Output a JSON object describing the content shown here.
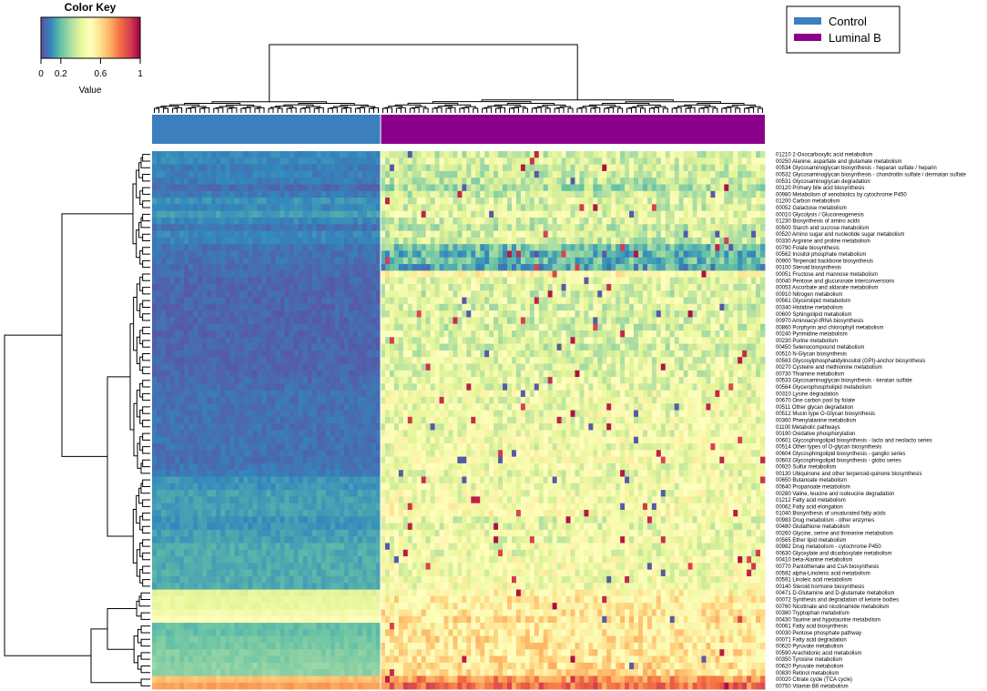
{
  "chart_data": {
    "type": "heatmap",
    "color_key": {
      "title": "Color Key",
      "label": "Value",
      "ticks": [
        "0",
        "0.2",
        "0.6",
        "1"
      ],
      "tick_values": [
        0,
        0.2,
        0.6,
        1
      ],
      "range": [
        0,
        1
      ],
      "colors": [
        "#5e4fa2",
        "#3288bd",
        "#66c2a5",
        "#abdda4",
        "#e6f598",
        "#ffffbf",
        "#fee08b",
        "#fdae61",
        "#f46d43",
        "#d53e4f",
        "#9e0142"
      ]
    },
    "legend": {
      "placement": "top-right",
      "entries": [
        {
          "label": "Control",
          "color": "#3b7fbf"
        },
        {
          "label": "Luminal B",
          "color": "#8b008b"
        }
      ]
    },
    "column_groups": [
      {
        "name": "Control",
        "color": "#3b7fbf",
        "columns": 50
      },
      {
        "name": "Luminal B",
        "color": "#8b008b",
        "columns": 85
      }
    ],
    "rows": [
      {
        "label": "01210 2-Oxocarboxylic acid metabolism",
        "control": 0.1,
        "luminal": 0.38
      },
      {
        "label": "00250 Alanine, aspartate and glutamate metabolism",
        "control": 0.1,
        "luminal": 0.4
      },
      {
        "label": "00534 Glycosaminoglycan biosynthesis - heparan sulfate / heparin",
        "control": 0.08,
        "luminal": 0.36
      },
      {
        "label": "00532 Glycosaminoglycan biosynthesis - chondroitin sulfate / dermatan sulfate",
        "control": 0.09,
        "luminal": 0.37
      },
      {
        "label": "00531 Glycosaminoglycan degradation",
        "control": 0.08,
        "luminal": 0.35
      },
      {
        "label": "00120 Primary bile acid biosynthesis",
        "control": 0.05,
        "luminal": 0.3
      },
      {
        "label": "00980 Metabolism of xenobiotics by cytochrome P450",
        "control": 0.08,
        "luminal": 0.36
      },
      {
        "label": "01200 Carbon metabolism",
        "control": 0.12,
        "luminal": 0.4
      },
      {
        "label": "00052 Galactose metabolism",
        "control": 0.1,
        "luminal": 0.38
      },
      {
        "label": "00010 Glycolysis / Gluconeogenesis",
        "control": 0.14,
        "luminal": 0.42
      },
      {
        "label": "01230 Biosynthesis of amino acids",
        "control": 0.1,
        "luminal": 0.38
      },
      {
        "label": "00500 Starch and sucrose metabolism",
        "control": 0.06,
        "luminal": 0.34
      },
      {
        "label": "00520 Amino sugar and nucleotide sugar metabolism",
        "control": 0.1,
        "luminal": 0.38
      },
      {
        "label": "00330 Arginine and proline metabolism",
        "control": 0.09,
        "luminal": 0.36
      },
      {
        "label": "00790 Folate biosynthesis",
        "control": 0.06,
        "luminal": 0.22
      },
      {
        "label": "00562 Inositol phosphate metabolism",
        "control": 0.06,
        "luminal": 0.18
      },
      {
        "label": "00900 Terpenoid backbone biosynthesis",
        "control": 0.06,
        "luminal": 0.2
      },
      {
        "label": "00100 Steroid biosynthesis",
        "control": 0.05,
        "luminal": 0.16
      },
      {
        "label": "00051 Fructose and mannose metabolism",
        "control": 0.05,
        "luminal": 0.5
      },
      {
        "label": "00040 Pentose and glucuronate interconversions",
        "control": 0.04,
        "luminal": 0.42
      },
      {
        "label": "00053 Ascorbate and aldarate metabolism",
        "control": 0.04,
        "luminal": 0.4
      },
      {
        "label": "00910 Nitrogen metabolism",
        "control": 0.04,
        "luminal": 0.38
      },
      {
        "label": "00561 Glycerolipid metabolism",
        "control": 0.04,
        "luminal": 0.4
      },
      {
        "label": "00340 Histidine metabolism",
        "control": 0.04,
        "luminal": 0.38
      },
      {
        "label": "00600 Sphingolipid metabolism",
        "control": 0.04,
        "luminal": 0.4
      },
      {
        "label": "00970 Aminoacyl-tRNA biosynthesis",
        "control": 0.04,
        "luminal": 0.38
      },
      {
        "label": "00860 Porphyrin and chlorophyll metabolism",
        "control": 0.04,
        "luminal": 0.38
      },
      {
        "label": "00240 Pyrimidine metabolism",
        "control": 0.04,
        "luminal": 0.4
      },
      {
        "label": "00230 Purine metabolism",
        "control": 0.04,
        "luminal": 0.4
      },
      {
        "label": "00450 Selenocompound metabolism",
        "control": 0.04,
        "luminal": 0.38
      },
      {
        "label": "00510 N-Glycan biosynthesis",
        "control": 0.04,
        "luminal": 0.4
      },
      {
        "label": "00563 Glycosylphosphatidylinositol (GPI)-anchor biosynthesis",
        "control": 0.04,
        "luminal": 0.4
      },
      {
        "label": "00270 Cysteine and methionine metabolism",
        "control": 0.04,
        "luminal": 0.4
      },
      {
        "label": "00730 Thiamine metabolism",
        "control": 0.04,
        "luminal": 0.4
      },
      {
        "label": "00533 Glycosaminoglycan biosynthesis - keratan sulfate",
        "control": 0.05,
        "luminal": 0.42
      },
      {
        "label": "00564 Glycerophospholipid metabolism",
        "control": 0.05,
        "luminal": 0.42
      },
      {
        "label": "00310 Lysine degradation",
        "control": 0.06,
        "luminal": 0.44
      },
      {
        "label": "00670 One carbon pool by folate",
        "control": 0.06,
        "luminal": 0.44
      },
      {
        "label": "00511 Other glycan degradation",
        "control": 0.06,
        "luminal": 0.44
      },
      {
        "label": "00512 Mucin type O-Glycan biosynthesis",
        "control": 0.06,
        "luminal": 0.44
      },
      {
        "label": "00360 Phenylalanine metabolism",
        "control": 0.06,
        "luminal": 0.44
      },
      {
        "label": "01100 Metabolic pathways",
        "control": 0.06,
        "luminal": 0.44
      },
      {
        "label": "00190 Oxidative phosphorylation",
        "control": 0.06,
        "luminal": 0.44
      },
      {
        "label": "00601 Glycosphingolipid biosynthesis - lacto and neolacto series",
        "control": 0.06,
        "luminal": 0.46
      },
      {
        "label": "00514 Other types of O-glycan biosynthesis",
        "control": 0.06,
        "luminal": 0.44
      },
      {
        "label": "00604 Glycosphingolipid biosynthesis - ganglio series",
        "control": 0.06,
        "luminal": 0.46
      },
      {
        "label": "00603 Glycosphingolipid biosynthesis - globo series",
        "control": 0.06,
        "luminal": 0.46
      },
      {
        "label": "00920 Sulfur metabolism",
        "control": 0.07,
        "luminal": 0.44
      },
      {
        "label": "00130 Ubiquinone and other terpenoid-quinone biosynthesis",
        "control": 0.08,
        "luminal": 0.44
      },
      {
        "label": "00650 Butanoate metabolism",
        "control": 0.12,
        "luminal": 0.44
      },
      {
        "label": "00640 Propanoate metabolism",
        "control": 0.12,
        "luminal": 0.44
      },
      {
        "label": "00280 Valine, leucine and isoleucine degradation",
        "control": 0.14,
        "luminal": 0.46
      },
      {
        "label": "01212 Fatty acid metabolism",
        "control": 0.14,
        "luminal": 0.46
      },
      {
        "label": "00062 Fatty acid elongation",
        "control": 0.14,
        "luminal": 0.48
      },
      {
        "label": "01040 Biosynthesis of unsaturated fatty acids",
        "control": 0.14,
        "luminal": 0.48
      },
      {
        "label": "00983 Drug metabolism - other enzymes",
        "control": 0.12,
        "luminal": 0.42
      },
      {
        "label": "00480 Glutathione metabolism",
        "control": 0.12,
        "luminal": 0.42
      },
      {
        "label": "00260 Glycine, serine and threonine metabolism",
        "control": 0.14,
        "luminal": 0.44
      },
      {
        "label": "00565 Ether lipid metabolism",
        "control": 0.14,
        "luminal": 0.44
      },
      {
        "label": "00982 Drug metabolism - cytochrome P450",
        "control": 0.16,
        "luminal": 0.44
      },
      {
        "label": "00630 Glyoxylate and dicarboxylate metabolism",
        "control": 0.16,
        "luminal": 0.44
      },
      {
        "label": "00410 beta-Alanine metabolism",
        "control": 0.16,
        "luminal": 0.46
      },
      {
        "label": "00770 Pantothenate and CoA biosynthesis",
        "control": 0.16,
        "luminal": 0.46
      },
      {
        "label": "00592 alpha-Linolenic acid metabolism",
        "control": 0.16,
        "luminal": 0.46
      },
      {
        "label": "00591 Linoleic acid metabolism",
        "control": 0.16,
        "luminal": 0.46
      },
      {
        "label": "00140 Steroid hormone biosynthesis",
        "control": 0.16,
        "luminal": 0.46
      },
      {
        "label": "00471 D-Glutamine and D-glutamate metabolism",
        "control": 0.4,
        "luminal": 0.52
      },
      {
        "label": "00072 Synthesis and degradation of ketone bodies",
        "control": 0.42,
        "luminal": 0.55
      },
      {
        "label": "00760 Nicotinate and nicotinamide metabolism",
        "control": 0.42,
        "luminal": 0.55
      },
      {
        "label": "00380 Tryptophan metabolism",
        "control": 0.45,
        "luminal": 0.56
      },
      {
        "label": "00430 Taurine and hypotaurine metabolism",
        "control": 0.48,
        "luminal": 0.58
      },
      {
        "label": "00061 Fatty acid biosynthesis",
        "control": 0.2,
        "luminal": 0.55
      },
      {
        "label": "00030 Pentose phosphate pathway",
        "control": 0.2,
        "luminal": 0.56
      },
      {
        "label": "00071 Fatty acid degradation",
        "control": 0.22,
        "luminal": 0.58
      },
      {
        "label": "00620 Pyruvate metabolism",
        "control": 0.22,
        "luminal": 0.58
      },
      {
        "label": "00590 Arachidonic acid metabolism",
        "control": 0.24,
        "luminal": 0.58
      },
      {
        "label": "00350 Tyrosine metabolism",
        "control": 0.24,
        "luminal": 0.58
      },
      {
        "label": "00620 Pyruvate metabolism",
        "control": 0.26,
        "luminal": 0.6
      },
      {
        "label": "00830 Retinol metabolism",
        "control": 0.26,
        "luminal": 0.6
      },
      {
        "label": "00020 Citrate cycle (TCA cycle)",
        "control": 0.66,
        "luminal": 0.74
      },
      {
        "label": "00750 Vitamin B6 metabolism",
        "control": 0.72,
        "luminal": 0.8
      }
    ]
  }
}
